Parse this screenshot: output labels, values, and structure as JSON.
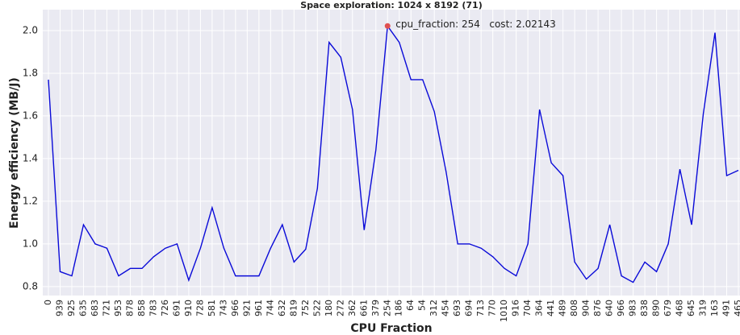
{
  "chart_data": {
    "type": "line",
    "title": "Space exploration: 1024 x 8192 (71)",
    "xlabel": "CPU Fraction",
    "ylabel": "Energy efficiency (MB/J)",
    "categories": [
      "0",
      "939",
      "925",
      "635",
      "683",
      "721",
      "953",
      "878",
      "858",
      "783",
      "726",
      "691",
      "910",
      "728",
      "581",
      "743",
      "966",
      "921",
      "961",
      "744",
      "632",
      "819",
      "752",
      "522",
      "180",
      "272",
      "362",
      "661",
      "379",
      "254",
      "186",
      "64",
      "54",
      "312",
      "454",
      "693",
      "694",
      "713",
      "770",
      "1010",
      "916",
      "704",
      "364",
      "441",
      "489",
      "808",
      "904",
      "876",
      "640",
      "966",
      "983",
      "838",
      "890",
      "679",
      "468",
      "645",
      "319",
      "163",
      "491",
      "465"
    ],
    "series": [
      {
        "name": "cost",
        "color": "#0a0ad8",
        "values": [
          1.77,
          0.87,
          0.85,
          1.09,
          1.0,
          0.98,
          0.85,
          0.885,
          0.885,
          0.94,
          0.98,
          1.0,
          0.83,
          0.98,
          1.17,
          0.98,
          0.85,
          0.85,
          0.85,
          0.98,
          1.09,
          0.915,
          0.975,
          1.26,
          1.945,
          1.875,
          1.63,
          1.065,
          1.44,
          2.02143,
          1.945,
          1.77,
          1.77,
          1.62,
          1.34,
          1.0,
          1.0,
          0.98,
          0.94,
          0.885,
          0.85,
          1.0,
          1.63,
          1.38,
          1.32,
          0.915,
          0.835,
          0.885,
          1.09,
          0.85,
          0.82,
          0.915,
          0.87,
          1.0,
          1.35,
          1.09,
          1.61,
          1.99,
          1.32,
          1.345
        ]
      }
    ],
    "annotation": {
      "text": "cpu_fraction: 254   cost: 2.02143",
      "index": 29,
      "color": "#e05050"
    },
    "ylim": [
      0.758,
      2.098
    ],
    "yticks": [
      0.8,
      {
        "value": 1,
        "label": "1.0"
      },
      1.2,
      1.4,
      1.6,
      1.8,
      {
        "value": 2,
        "label": "2.0"
      }
    ],
    "grid": true
  }
}
